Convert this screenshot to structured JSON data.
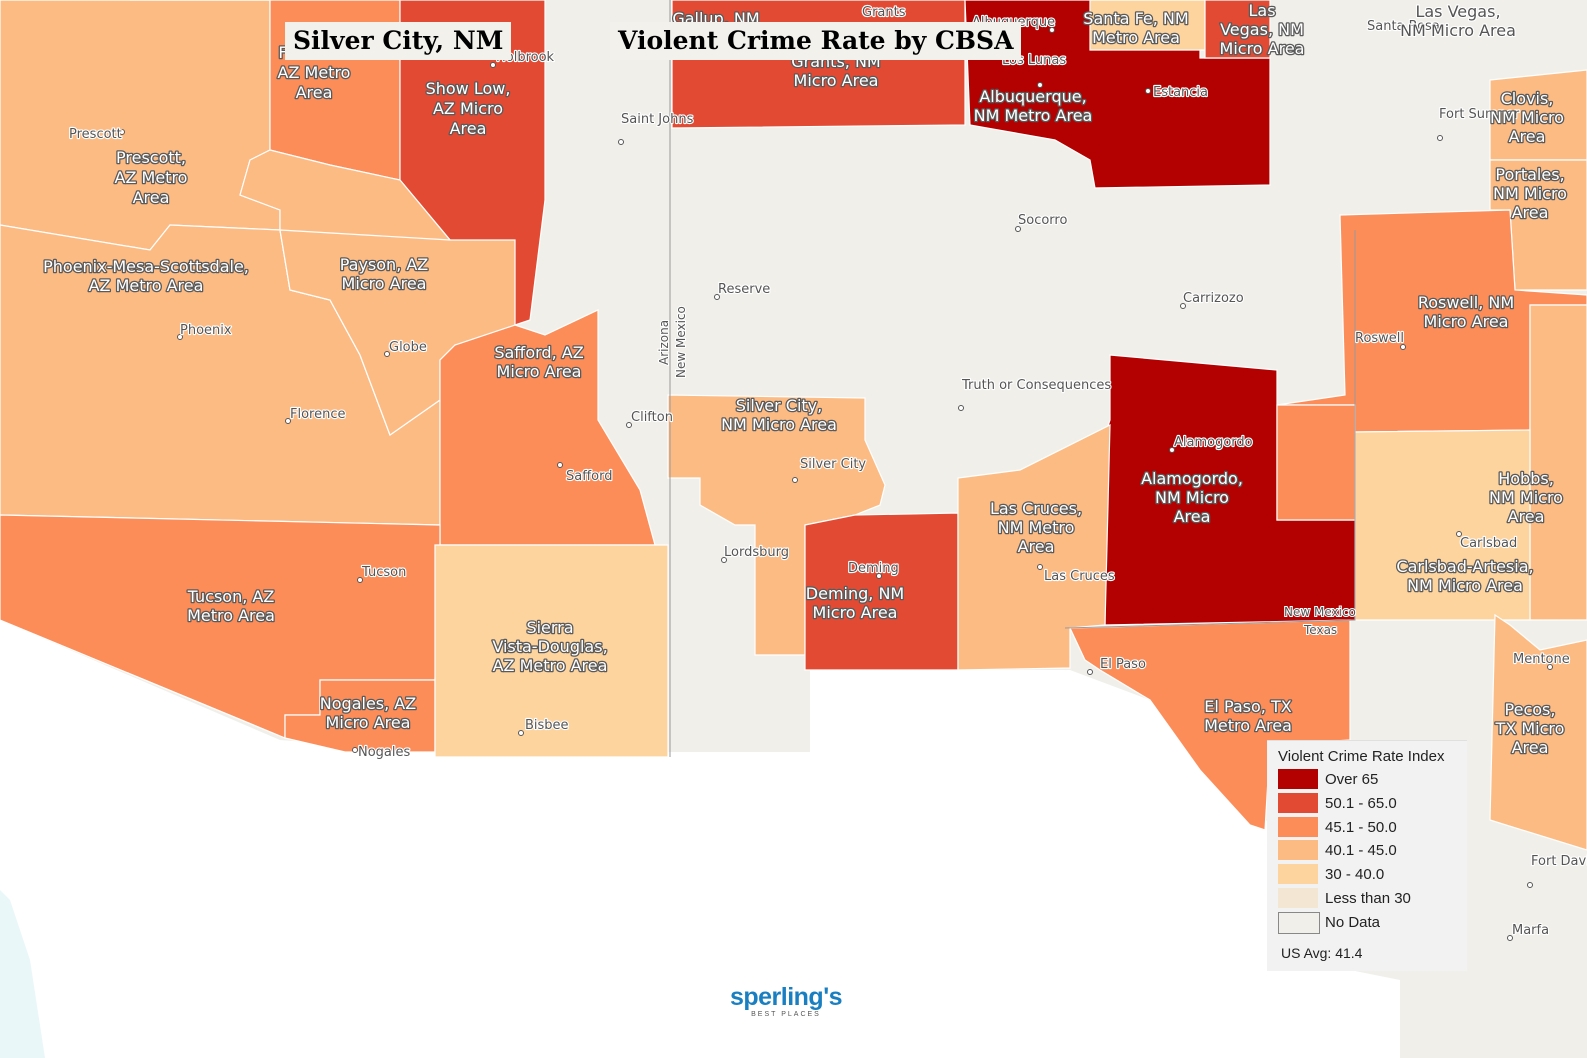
{
  "title_left": "Silver City, NM",
  "title_main": "Violent Crime Rate by CBSA",
  "colors": {
    "over_65": "#b30000",
    "r50_65": "#e34a33",
    "r45_50": "#fc8d59",
    "r40_45": "#fdbb84",
    "r30_40": "#fdd49e",
    "lt30": "#f3e7d3",
    "no_data": "#f0efea",
    "water": "#ffffff"
  },
  "legend": {
    "title": "Violent Crime Rate Index",
    "items": [
      {
        "label": "Over 65",
        "color": "#b30000"
      },
      {
        "label": "50.1 - 65.0",
        "color": "#e34a33"
      },
      {
        "label": "45.1 - 50.0",
        "color": "#fc8d59"
      },
      {
        "label": "40.1 - 45.0",
        "color": "#fdbb84"
      },
      {
        "label": "30 - 40.0",
        "color": "#fdd49e"
      },
      {
        "label": "Less than 30",
        "color": "#f3e7d3"
      },
      {
        "label": "No Data",
        "color": "#f0efea"
      }
    ],
    "us_avg": "US Avg: 41.4"
  },
  "areas": [
    {
      "name": "Flagstaff, AZ Metro Area",
      "lines": [
        "F",
        "AZ Metro",
        "Area"
      ],
      "range": "45.1 - 50.0"
    },
    {
      "name": "Show Low, AZ Micro Area",
      "lines": [
        "Show Low,",
        "AZ Micro",
        "Area"
      ],
      "range": "50.1 - 65.0"
    },
    {
      "name": "Gallup, NM Micro Area",
      "lines": [
        "Gallup, NM"
      ],
      "range": "50.1 - 65.0"
    },
    {
      "name": "Grants, NM Micro Area",
      "lines": [
        "Grants, NM",
        "Micro Area"
      ],
      "range": "50.1 - 65.0"
    },
    {
      "name": "Albuquerque, NM Metro Area",
      "lines": [
        "Albuquerque,",
        "NM Metro Area"
      ],
      "range": "Over 65"
    },
    {
      "name": "Santa Fe, NM Metro Area",
      "lines": [
        "Santa Fe, NM",
        "Metro Area"
      ],
      "range": "30 - 40.0"
    },
    {
      "name": "Las Vegas, NM Micro Area",
      "lines": [
        "Las",
        "Vegas, NM",
        "Micro Area"
      ],
      "range": "50.1 - 65.0"
    },
    {
      "name": "Las Vegas, NM Micro Area (label)",
      "lines": [
        "Las Vegas,",
        "NM Micro Area"
      ],
      "range": "No Data"
    },
    {
      "name": "Prescott, AZ Metro Area",
      "lines": [
        "Prescott,",
        "AZ Metro",
        "Area"
      ],
      "range": "40.1 - 45.0"
    },
    {
      "name": "Phoenix-Mesa-Scottsdale, AZ Metro Area",
      "lines": [
        "Phoenix-Mesa-Scottsdale,",
        "AZ Metro Area"
      ],
      "range": "40.1 - 45.0"
    },
    {
      "name": "Payson, AZ Micro Area",
      "lines": [
        "Payson, AZ",
        "Micro Area"
      ],
      "range": "40.1 - 45.0"
    },
    {
      "name": "Safford, AZ Micro Area",
      "lines": [
        "Safford, AZ",
        "Micro Area"
      ],
      "range": "45.1 - 50.0"
    },
    {
      "name": "Tucson, AZ Metro Area",
      "lines": [
        "Tucson, AZ",
        "Metro Area"
      ],
      "range": "45.1 - 50.0"
    },
    {
      "name": "Nogales, AZ Micro Area",
      "lines": [
        "Nogales, AZ",
        "Micro Area"
      ],
      "range": "45.1 - 50.0"
    },
    {
      "name": "Sierra Vista-Douglas, AZ Metro Area",
      "lines": [
        "Sierra",
        "Vista-Douglas,",
        "AZ Metro Area"
      ],
      "range": "30 - 40.0"
    },
    {
      "name": "Silver City, NM Micro Area",
      "lines": [
        "Silver City,",
        "NM Micro Area"
      ],
      "range": "40.1 - 45.0"
    },
    {
      "name": "Deming, NM Micro Area",
      "lines": [
        "Deming, NM",
        "Micro Area"
      ],
      "range": "50.1 - 65.0"
    },
    {
      "name": "Las Cruces, NM Metro Area",
      "lines": [
        "Las Cruces,",
        "NM Metro",
        "Area"
      ],
      "range": "40.1 - 45.0"
    },
    {
      "name": "Alamogordo, NM Micro Area",
      "lines": [
        "Alamogordo,",
        "NM Micro",
        "Area"
      ],
      "range": "Over 65"
    },
    {
      "name": "Roswell, NM Micro Area",
      "lines": [
        "Roswell, NM",
        "Micro Area"
      ],
      "range": "45.1 - 50.0"
    },
    {
      "name": "Clovis, NM Micro Area",
      "lines": [
        "Clovis,",
        "NM Micro",
        "Area"
      ],
      "range": "40.1 - 45.0"
    },
    {
      "name": "Portales, NM Micro Area",
      "lines": [
        "Portales,",
        "NM Micro",
        "Area"
      ],
      "range": "40.1 - 45.0"
    },
    {
      "name": "Hobbs, NM Micro Area",
      "lines": [
        "Hobbs,",
        "NM Micro",
        "Area"
      ],
      "range": "40.1 - 45.0"
    },
    {
      "name": "Carlsbad-Artesia, NM Micro Area",
      "lines": [
        "Carlsbad-Artesia,",
        "NM Micro Area"
      ],
      "range": "30 - 40.0"
    },
    {
      "name": "El Paso, TX Metro Area",
      "lines": [
        "El Paso, TX",
        "Metro Area"
      ],
      "range": "45.1 - 50.0"
    },
    {
      "name": "Pecos, TX Micro Area",
      "lines": [
        "Pecos,",
        "TX Micro",
        "Area"
      ],
      "range": "40.1 - 45.0"
    }
  ],
  "cities": [
    "Holbrook",
    "Grants",
    "Albuquerque",
    "Santa Rosa",
    "Los Lunas",
    "Estancia",
    "Prescott",
    "Saint Johns",
    "Fort Sumner",
    "Socorro",
    "Reserve",
    "Carrizozo",
    "Phoenix",
    "Globe",
    "Roswell",
    "Truth or Consequences",
    "Florence",
    "Clifton",
    "Alamogordo",
    "Safford",
    "Silver City",
    "Carlsbad",
    "Lordsburg",
    "Deming",
    "Las Cruces",
    "Tucson",
    "El Paso",
    "Mentone",
    "Bisbee",
    "Nogales",
    "Fort Davis",
    "Marfa"
  ],
  "states": [
    "Arizona",
    "New Mexico",
    "New Mexico",
    "Texas"
  ],
  "logo": {
    "main": "sperling's",
    "sub": "BEST PLACES"
  }
}
